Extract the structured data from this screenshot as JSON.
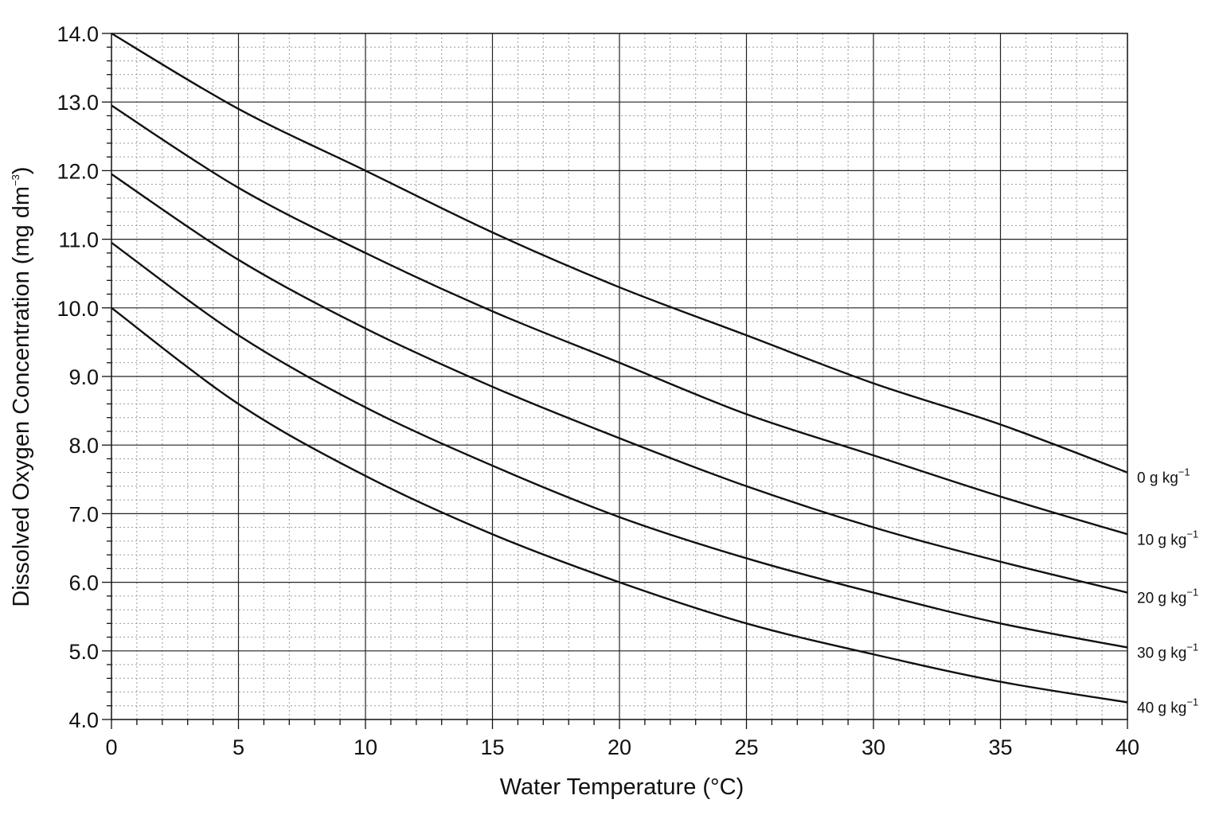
{
  "chart_data": {
    "type": "line",
    "title": "",
    "xlabel": "Water Temperature (°C)",
    "ylabel_main": "Dissolved Oxygen Concentration (mg dm",
    "ylabel_sup": "−3",
    "ylabel_tail": ")",
    "xlim": [
      0,
      40
    ],
    "ylim": [
      4.0,
      14.0
    ],
    "x_ticks": [
      0,
      5,
      10,
      15,
      20,
      25,
      30,
      35,
      40
    ],
    "x_tick_labels": [
      "0",
      "5",
      "10",
      "15",
      "20",
      "25",
      "30",
      "35",
      "40"
    ],
    "y_ticks": [
      4,
      5,
      6,
      7,
      8,
      9,
      10,
      11,
      12,
      13,
      14
    ],
    "y_tick_labels": [
      "4.0",
      "5.0",
      "6.0",
      "7.0",
      "8.0",
      "9.0",
      "10.0",
      "11.0",
      "12.0",
      "13.0",
      "14.0"
    ],
    "grid": true,
    "legend": "series labels at right end of each line",
    "x": [
      0,
      5,
      10,
      15,
      20,
      25,
      30,
      35,
      40
    ],
    "series": [
      {
        "name": "0 g kg",
        "sup": "−1",
        "values": [
          14.0,
          12.9,
          12.0,
          11.1,
          10.3,
          9.6,
          8.9,
          8.3,
          7.6
        ]
      },
      {
        "name": "10 g kg",
        "sup": "−1",
        "values": [
          12.95,
          11.75,
          10.8,
          9.95,
          9.2,
          8.45,
          7.85,
          7.25,
          6.7
        ]
      },
      {
        "name": "20 g kg",
        "sup": "−1",
        "values": [
          11.95,
          10.7,
          9.7,
          8.85,
          8.1,
          7.4,
          6.8,
          6.3,
          5.85
        ]
      },
      {
        "name": "30 g kg",
        "sup": "−1",
        "values": [
          10.95,
          9.6,
          8.55,
          7.7,
          6.95,
          6.35,
          5.85,
          5.4,
          5.05
        ]
      },
      {
        "name": "40 g kg",
        "sup": "−1",
        "values": [
          10.0,
          8.6,
          7.55,
          6.7,
          6.0,
          5.4,
          4.95,
          4.55,
          4.25
        ]
      }
    ]
  }
}
